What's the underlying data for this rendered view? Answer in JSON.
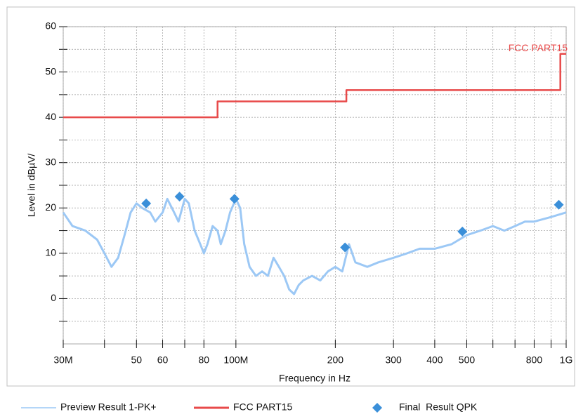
{
  "chart_data": {
    "type": "line",
    "xlabel": "Frequency in Hz",
    "ylabel": "Level in dBµV/",
    "xscale": "log",
    "grid": true,
    "xlim": [
      30000000,
      1000000000
    ],
    "xticks": [
      {
        "value": 30000000,
        "label": "30M"
      },
      {
        "value": 50000000,
        "label": "50"
      },
      {
        "value": 60000000,
        "label": "60"
      },
      {
        "value": 80000000,
        "label": "80"
      },
      {
        "value": 100000000,
        "label": "100M"
      },
      {
        "value": 200000000,
        "label": "200"
      },
      {
        "value": 300000000,
        "label": "300"
      },
      {
        "value": 400000000,
        "label": "400"
      },
      {
        "value": 500000000,
        "label": "500"
      },
      {
        "value": 800000000,
        "label": "800"
      },
      {
        "value": 1000000000,
        "label": "1G"
      }
    ],
    "xminorticks": [
      40000000,
      70000000,
      600000000,
      700000000,
      900000000
    ],
    "ylim": [
      -10,
      60
    ],
    "yticks": [
      0,
      10,
      20,
      30,
      40,
      50,
      60
    ],
    "yminorticks": [
      -5,
      5,
      15,
      25,
      35,
      45,
      55
    ],
    "annotations": [
      {
        "text": "FCC PART15",
        "x": 1000000000,
        "y": 55,
        "color": "#e84a4a"
      }
    ],
    "series": [
      {
        "name": "Preview Result 1-PK+",
        "type": "line",
        "color": "#9cc8f5",
        "x": [
          30000000,
          32000000,
          35000000,
          38000000,
          40000000,
          42000000,
          44000000,
          46000000,
          48000000,
          50000000,
          52000000,
          55000000,
          57000000,
          60000000,
          62000000,
          65000000,
          67000000,
          70000000,
          72000000,
          75000000,
          78000000,
          80000000,
          82000000,
          85000000,
          88000000,
          90000000,
          93000000,
          96000000,
          100000000,
          103000000,
          106000000,
          110000000,
          115000000,
          120000000,
          125000000,
          130000000,
          135000000,
          140000000,
          145000000,
          150000000,
          155000000,
          160000000,
          170000000,
          180000000,
          190000000,
          200000000,
          210000000,
          220000000,
          230000000,
          250000000,
          270000000,
          300000000,
          330000000,
          360000000,
          400000000,
          450000000,
          500000000,
          550000000,
          600000000,
          650000000,
          700000000,
          750000000,
          800000000,
          900000000,
          1000000000
        ],
        "values": [
          19,
          16,
          15,
          13,
          10,
          7,
          9,
          14,
          19,
          21,
          20,
          19,
          17,
          19,
          22,
          19,
          17,
          22,
          21,
          15,
          12,
          10,
          12,
          16,
          15,
          12,
          15,
          19,
          22,
          20,
          12,
          7,
          5,
          6,
          5,
          9,
          7,
          5,
          2,
          1,
          3,
          4,
          5,
          4,
          6,
          7,
          6,
          12,
          8,
          7,
          8,
          9,
          10,
          11,
          11,
          12,
          14,
          15,
          16,
          15,
          16,
          17,
          17,
          18,
          19
        ]
      },
      {
        "name": "FCC PART15",
        "type": "line",
        "color": "#e84a4a",
        "x": [
          30000000,
          88000000,
          88000000,
          216000000,
          216000000,
          960000000,
          960000000,
          1000000000
        ],
        "values": [
          40,
          40,
          43.5,
          43.5,
          46,
          46,
          54,
          54
        ]
      },
      {
        "name": "Final  Result QPK",
        "type": "scatter",
        "color": "#3a8fd9",
        "x": [
          53500000,
          67500000,
          99000000,
          214000000,
          485000000,
          950000000
        ],
        "values": [
          21,
          22.5,
          22,
          11.3,
          14.8,
          20.7
        ]
      }
    ]
  }
}
